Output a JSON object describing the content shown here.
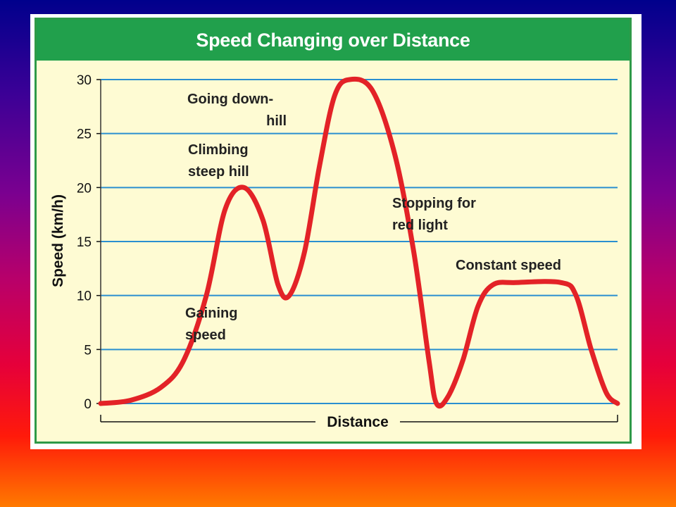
{
  "chart_data": {
    "type": "line",
    "title": "Speed Changing over Distance",
    "xlabel": "Distance",
    "ylabel": "Speed (km/h)",
    "ylim": [
      0,
      30
    ],
    "yticks": [
      "0",
      "5",
      "10",
      "15",
      "20",
      "25",
      "30"
    ],
    "grid": true,
    "line_color": "#e32227",
    "points": [
      {
        "x": 0,
        "y": 0
      },
      {
        "x": 4,
        "y": 0.3
      },
      {
        "x": 8,
        "y": 1.5
      },
      {
        "x": 11,
        "y": 4
      },
      {
        "x": 14,
        "y": 10
      },
      {
        "x": 16.5,
        "y": 18
      },
      {
        "x": 19,
        "y": 20
      },
      {
        "x": 21.5,
        "y": 17
      },
      {
        "x": 23.5,
        "y": 11
      },
      {
        "x": 25,
        "y": 10
      },
      {
        "x": 27,
        "y": 14
      },
      {
        "x": 29,
        "y": 22
      },
      {
        "x": 31,
        "y": 28.5
      },
      {
        "x": 33,
        "y": 30
      },
      {
        "x": 36,
        "y": 29
      },
      {
        "x": 39,
        "y": 23
      },
      {
        "x": 41.5,
        "y": 14
      },
      {
        "x": 43.5,
        "y": 4
      },
      {
        "x": 44.5,
        "y": 0
      },
      {
        "x": 46,
        "y": 0.6
      },
      {
        "x": 48,
        "y": 4
      },
      {
        "x": 50,
        "y": 9
      },
      {
        "x": 52,
        "y": 11
      },
      {
        "x": 55,
        "y": 11.2
      },
      {
        "x": 61,
        "y": 11.2
      },
      {
        "x": 63,
        "y": 10
      },
      {
        "x": 65,
        "y": 5
      },
      {
        "x": 67,
        "y": 1
      },
      {
        "x": 68.5,
        "y": 0
      }
    ],
    "annotations": [
      {
        "lines": [
          "Going down-",
          "hill"
        ]
      },
      {
        "lines": [
          "Climbing",
          "steep hill"
        ]
      },
      {
        "lines": [
          "Stopping for",
          "red light"
        ]
      },
      {
        "lines": [
          "Constant speed"
        ]
      },
      {
        "lines": [
          "Gaining",
          "speed"
        ]
      }
    ]
  }
}
